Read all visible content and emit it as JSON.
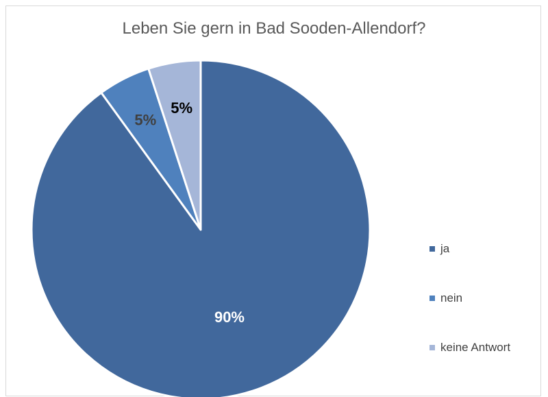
{
  "chart_data": {
    "type": "pie",
    "title": "Leben Sie gern in Bad Sooden-Allendorf?",
    "categories": [
      "ja",
      "nein",
      "keine Antwort"
    ],
    "values": [
      90,
      5,
      5
    ],
    "data_labels": [
      "90%",
      "5%",
      "5%"
    ],
    "colors": [
      "#41689c",
      "#4f81bd",
      "#a5b6d8"
    ],
    "label_colors": [
      "#ffffff",
      "#404040",
      "#000000"
    ],
    "legend_position": "right"
  }
}
